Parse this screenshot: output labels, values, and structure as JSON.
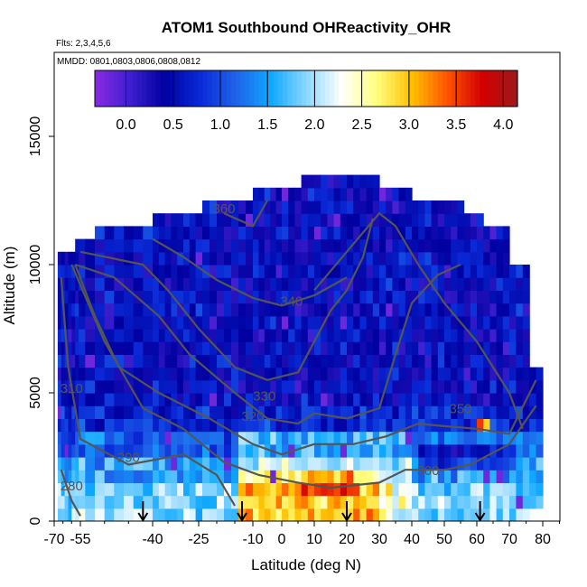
{
  "chart_data": {
    "type": "heatmap",
    "title": "ATOM1 Southbound OHReactivity_OHR",
    "subtitle_flights": "Flts: 2,3,4,5,6",
    "subtitle_dates": "MMDD: 0801,0803,0806,0808,0812",
    "xlabel": "Latitude (deg N)",
    "ylabel": "Altitude (m)",
    "xlim": [
      -70,
      85
    ],
    "ylim": [
      0,
      17500
    ],
    "x_ticks": [
      -70,
      -55,
      -40,
      -25,
      -10,
      0,
      10,
      20,
      30,
      40,
      50,
      60,
      70,
      80
    ],
    "y_ticks": [
      0,
      5000,
      10000,
      15000
    ],
    "colorbar": {
      "range": [
        -0.33,
        4.15
      ],
      "ticks": [
        0.0,
        0.5,
        1.0,
        1.5,
        2.0,
        2.5,
        3.0,
        3.5,
        4.0
      ],
      "tick_labels": [
        "0.0",
        "0.5",
        "1.0",
        "1.5",
        "2.0",
        "2.5",
        "3.0",
        "3.5",
        "4.0"
      ],
      "colors": [
        "#8a2be2",
        "#3d1fd0",
        "#0000a0",
        "#0a2ad8",
        "#1e63e8",
        "#0fa8ff",
        "#8ad6ff",
        "#ffffff",
        "#ffff80",
        "#ffc000",
        "#ff5500",
        "#d40000",
        "#9b1a1a"
      ]
    },
    "theta_contours": [
      {
        "label": "280",
        "points": [
          [
            -66,
            2000
          ],
          [
            -60,
            800
          ],
          [
            -55,
            200
          ]
        ],
        "label_at": [
          -60,
          1200
        ]
      },
      {
        "label": "290",
        "points": [
          [
            -66,
            9500
          ],
          [
            -62,
            6000
          ],
          [
            -55,
            3200
          ],
          [
            -45,
            2200
          ],
          [
            -30,
            2600
          ],
          [
            -20,
            1800
          ],
          [
            -15,
            600
          ]
        ],
        "label_at": [
          -45,
          2300
        ]
      },
      {
        "label": "300",
        "points": [
          [
            -60,
            10000
          ],
          [
            -50,
            7000
          ],
          [
            -42,
            4400
          ],
          [
            -30,
            3600
          ],
          [
            -18,
            2300
          ],
          [
            -8,
            1800
          ],
          [
            5,
            1500
          ],
          [
            15,
            1300
          ],
          [
            30,
            1500
          ],
          [
            38,
            2000
          ],
          [
            50,
            2000
          ],
          [
            58,
            2200
          ],
          [
            70,
            3000
          ],
          [
            78,
            4500
          ]
        ],
        "label_at": [
          45,
          1800
        ]
      },
      {
        "label": "310",
        "points": [
          [
            -58,
            10000
          ],
          [
            -52,
            8000
          ],
          [
            -47,
            6000
          ],
          [
            -38,
            5000
          ],
          [
            -22,
            4000
          ],
          [
            -10,
            3000
          ],
          [
            0,
            2600
          ],
          [
            10,
            3000
          ],
          [
            22,
            3000
          ],
          [
            32,
            3300
          ],
          [
            42,
            3800
          ],
          [
            50,
            3700
          ],
          [
            60,
            3600
          ],
          [
            70,
            3400
          ],
          [
            78,
            5500
          ]
        ],
        "label_at": [
          -60,
          5000
        ]
      },
      {
        "label": "320",
        "points": [
          [
            -58,
            10000
          ],
          [
            -48,
            9500
          ],
          [
            -38,
            8000
          ],
          [
            -28,
            6500
          ],
          [
            -15,
            5000
          ],
          [
            -5,
            4000
          ],
          [
            5,
            3800
          ],
          [
            10,
            4200
          ],
          [
            20,
            4000
          ],
          [
            30,
            4400
          ],
          [
            35,
            6500
          ],
          [
            40,
            8500
          ],
          [
            48,
            9600
          ],
          [
            55,
            10000
          ]
        ],
        "label_at": [
          -10,
          3900
        ]
      },
      {
        "label": "330",
        "points": [
          [
            -55,
            10500
          ],
          [
            -42,
            10000
          ],
          [
            -35,
            9000
          ],
          [
            -25,
            7500
          ],
          [
            -15,
            6000
          ],
          [
            -5,
            5500
          ],
          [
            5,
            5800
          ],
          [
            10,
            7000
          ],
          [
            15,
            8200
          ],
          [
            20,
            9000
          ],
          [
            25,
            10300
          ],
          [
            28,
            11800
          ]
        ],
        "label_at": [
          -6,
          4700
        ]
      },
      {
        "label": "340",
        "points": [
          [
            -40,
            11000
          ],
          [
            -30,
            10300
          ],
          [
            -20,
            9400
          ],
          [
            -10,
            8700
          ],
          [
            0,
            8400
          ],
          [
            10,
            8800
          ],
          [
            20,
            9500
          ]
        ],
        "label_at": [
          3,
          8400
        ]
      },
      {
        "label": "350",
        "points": [
          [
            10,
            9000
          ],
          [
            20,
            10500
          ],
          [
            30,
            12000
          ],
          [
            35,
            11500
          ],
          [
            42,
            10000
          ],
          [
            50,
            8500
          ],
          [
            60,
            7000
          ],
          [
            65,
            6000
          ],
          [
            70,
            5000
          ],
          [
            74,
            3600
          ]
        ],
        "label_at": [
          55,
          4200
        ]
      },
      {
        "label": "360",
        "points": [
          [
            -18,
            12000
          ],
          [
            -10,
            11500
          ],
          [
            -5,
            12500
          ]
        ],
        "label_at": [
          -18,
          12000
        ]
      }
    ],
    "arrow_markers_lat": [
      -42,
      -13,
      20,
      61
    ]
  }
}
